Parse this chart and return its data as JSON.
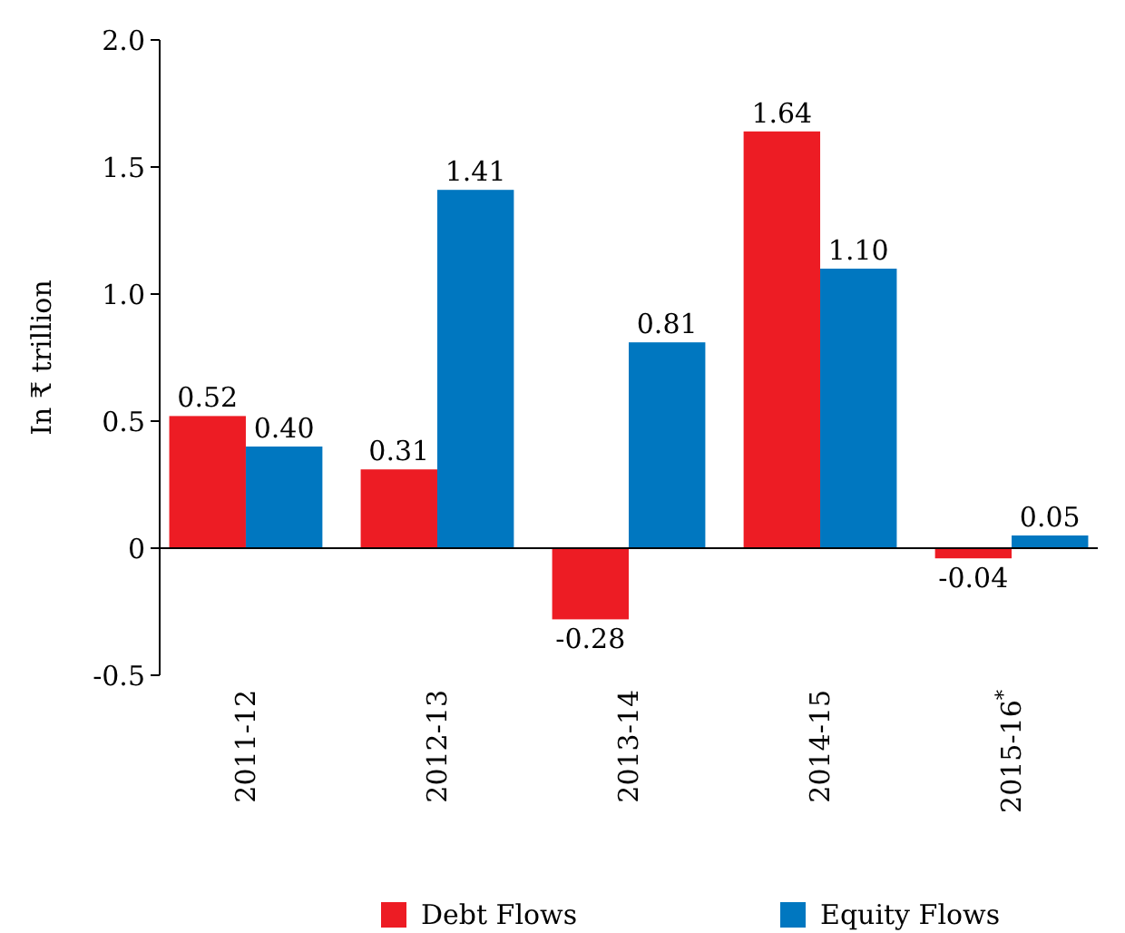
{
  "chart_data": {
    "type": "bar",
    "ylabel": "In ₹ trillion",
    "categories": [
      "2011-12",
      "2012-13",
      "2013-14",
      "2014-15",
      "2015-16$^{*}$"
    ],
    "series": [
      {
        "name": "Debt Flows",
        "color": "#ed1c24",
        "values": [
          0.52,
          0.31,
          -0.28,
          1.64,
          -0.04
        ],
        "value_labels": [
          "0.52",
          "0.31",
          "-0.28",
          "1.64",
          "-0.04"
        ]
      },
      {
        "name": "Equity Flows",
        "color": "#0077c0",
        "values": [
          0.4,
          1.41,
          0.81,
          1.1,
          0.05
        ],
        "value_labels": [
          "0.40",
          "1.41",
          "0.81",
          "1.10",
          "0.05"
        ]
      }
    ],
    "ylim": [
      -0.5,
      2.0
    ],
    "yticks": [
      -0.5,
      0,
      0.5,
      {
        "value": 1,
        "label": "1.0"
      },
      1.5,
      {
        "value": 2,
        "label": "2.0"
      }
    ],
    "legend": "bottom"
  }
}
